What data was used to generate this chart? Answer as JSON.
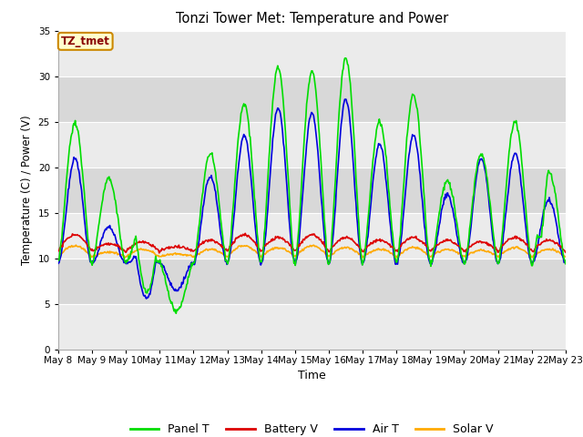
{
  "title": "Tonzi Tower Met: Temperature and Power",
  "xlabel": "Time",
  "ylabel": "Temperature (C) / Power (V)",
  "ylim": [
    0,
    35
  ],
  "yticks": [
    0,
    5,
    10,
    15,
    20,
    25,
    30,
    35
  ],
  "xtick_labels": [
    "May 8",
    "May 9",
    "May 10",
    "May 11",
    "May 12",
    "May 13",
    "May 14",
    "May 15",
    "May 16",
    "May 17",
    "May 18",
    "May 19",
    "May 20",
    "May 21",
    "May 22",
    "May 23"
  ],
  "annotation_text": "TZ_tmet",
  "annotation_facecolor": "#ffffcc",
  "annotation_edgecolor": "#cc8800",
  "annotation_textcolor": "#880000",
  "bg_color_light": "#ebebeb",
  "bg_color_dark": "#d8d8d8",
  "fig_bg_color": "#ffffff",
  "grid_color": "#ffffff",
  "series": {
    "panel_t": {
      "label": "Panel T",
      "color": "#00dd00",
      "lw": 1.2
    },
    "battery_v": {
      "label": "Battery V",
      "color": "#dd0000",
      "lw": 1.2
    },
    "air_t": {
      "label": "Air T",
      "color": "#0000dd",
      "lw": 1.2
    },
    "solar_v": {
      "label": "Solar V",
      "color": "#ffaa00",
      "lw": 1.2
    }
  },
  "panel_t_peaks": [
    24.8,
    18.8,
    13.2,
    4.2,
    21.5,
    27.0,
    31.0,
    30.5,
    32.0,
    25.0,
    28.0,
    18.5,
    21.5,
    25.0,
    19.5
  ],
  "air_t_peaks": [
    21.0,
    13.5,
    10.5,
    6.5,
    19.0,
    23.5,
    26.5,
    26.0,
    27.5,
    22.5,
    23.5,
    17.0,
    21.0,
    21.5,
    16.5
  ],
  "base_temp": 9.5,
  "battery_base": 10.8,
  "battery_amp": [
    1.8,
    0.8,
    1.0,
    0.5,
    1.2,
    1.8,
    1.5,
    1.8,
    1.5,
    1.2,
    1.5,
    1.2,
    1.0,
    1.5,
    1.2
  ],
  "solar_base": 10.2,
  "solar_amp": [
    1.2,
    0.5,
    0.8,
    0.3,
    0.8,
    1.2,
    1.0,
    1.2,
    1.0,
    0.8,
    1.0,
    0.8,
    0.7,
    1.0,
    0.8
  ],
  "n_days": 15,
  "hours_per_day": 48
}
